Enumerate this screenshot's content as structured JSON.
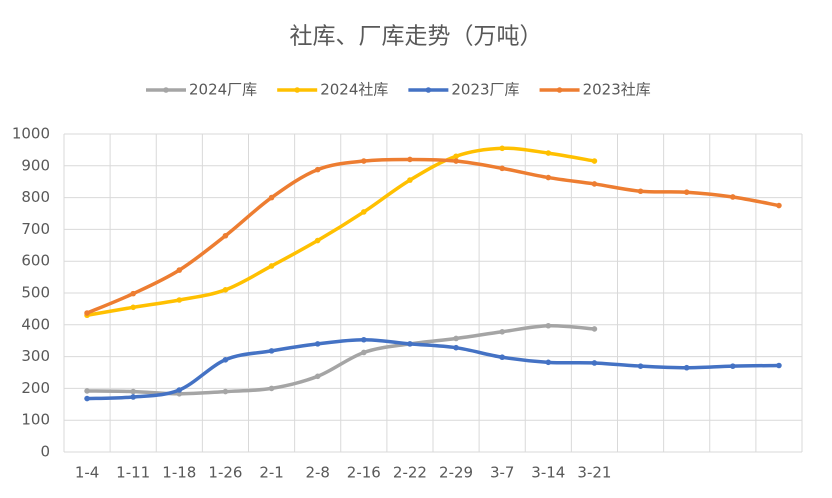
{
  "chart_data": {
    "type": "line",
    "title": "社库、厂库走势（万吨）",
    "categories": [
      "1-4",
      "1-11",
      "1-18",
      "1-26",
      "2-1",
      "2-8",
      "2-16",
      "2-22",
      "2-29",
      "3-7",
      "3-14",
      "3-21",
      null,
      null,
      null,
      null
    ],
    "series": [
      {
        "name": "2024厂库",
        "color": "#a5a5a5",
        "values": [
          192,
          190,
          183,
          190,
          200,
          238,
          313,
          340,
          357,
          378,
          397,
          387,
          null,
          null,
          null,
          null
        ]
      },
      {
        "name": "2024社库",
        "color": "#ffc000",
        "values": [
          430,
          455,
          478,
          510,
          585,
          665,
          755,
          855,
          930,
          955,
          940,
          915,
          null,
          null,
          null,
          null
        ]
      },
      {
        "name": "2023厂库",
        "color": "#4472c4",
        "values": [
          168,
          173,
          195,
          290,
          318,
          340,
          353,
          340,
          328,
          298,
          282,
          280,
          270,
          265,
          270,
          272
        ]
      },
      {
        "name": "2023社库",
        "color": "#ed7d31",
        "values": [
          437,
          498,
          572,
          680,
          800,
          888,
          915,
          920,
          915,
          892,
          863,
          843,
          820,
          817,
          802,
          775
        ]
      }
    ],
    "ylim": [
      0,
      1000
    ],
    "yticks": [
      0,
      100,
      200,
      300,
      400,
      500,
      600,
      700,
      800,
      900,
      1000
    ],
    "grid": true,
    "smooth": true,
    "legend": "top"
  }
}
